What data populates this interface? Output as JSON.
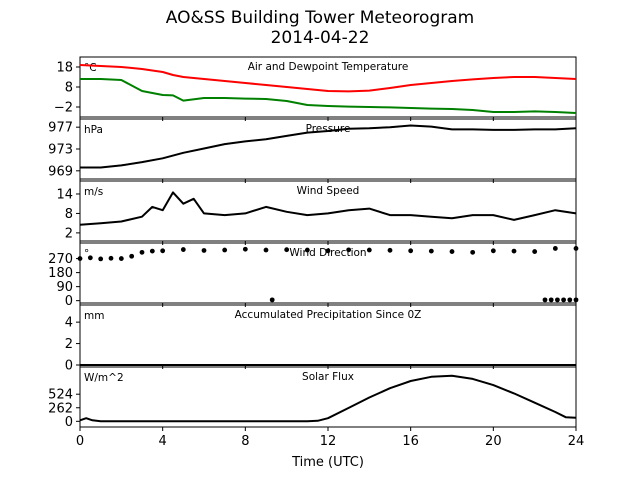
{
  "title": "AO&SS Building Tower Meteorogram",
  "subtitle": "2014-04-22",
  "chart_data": [
    {
      "type": "line",
      "panel": "temperature",
      "title": "Air and Dewpoint Temperature",
      "unit": "°C",
      "yticks": [
        18,
        8,
        -2
      ],
      "ytick_labels": [
        "18",
        "8",
        "−2"
      ],
      "ylim": [
        -7,
        23
      ],
      "xlim": [
        0,
        24
      ],
      "x": [
        0,
        1,
        2,
        3,
        4,
        4.5,
        5,
        6,
        7,
        8,
        9,
        10,
        11,
        12,
        13,
        14,
        15,
        16,
        17,
        18,
        19,
        20,
        21,
        22,
        23,
        24
      ],
      "series": [
        {
          "color": "#ff0000",
          "values": [
            19,
            18.5,
            18,
            17,
            15.5,
            14,
            13,
            12,
            11,
            10,
            9,
            8,
            7,
            6,
            5.8,
            6.2,
            7.5,
            9,
            10,
            11,
            11.8,
            12.5,
            13,
            13,
            12.5,
            12
          ]
        },
        {
          "color": "#008000",
          "values": [
            12,
            12,
            11.5,
            6,
            4,
            3.8,
            1.2,
            2.5,
            2.5,
            2.2,
            2,
            1,
            -1,
            -1.5,
            -1.8,
            -2,
            -2.2,
            -2.5,
            -2.8,
            -3,
            -3.5,
            -4.5,
            -4.5,
            -4.2,
            -4.5,
            -5
          ]
        }
      ]
    },
    {
      "type": "line",
      "panel": "pressure",
      "title": "Pressure",
      "unit": "hPa",
      "yticks": [
        977,
        973,
        969
      ],
      "ylim": [
        967.5,
        978.5
      ],
      "xlim": [
        0,
        24
      ],
      "x": [
        0,
        1,
        2,
        3,
        4,
        5,
        6,
        7,
        8,
        9,
        10,
        11,
        12,
        13,
        14,
        15,
        16,
        17,
        18,
        19,
        20,
        21,
        22,
        23,
        24
      ],
      "series": [
        {
          "color": "#000000",
          "values": [
            969.6,
            969.6,
            970,
            970.6,
            971.3,
            972.3,
            973.1,
            973.9,
            974.4,
            974.8,
            975.4,
            976,
            976.3,
            976.7,
            976.8,
            977,
            977.3,
            977.1,
            976.6,
            976.6,
            976.5,
            976.5,
            976.6,
            976.6,
            976.8
          ]
        }
      ]
    },
    {
      "type": "line",
      "panel": "wind_speed",
      "title": "Wind Speed",
      "unit": "m/s",
      "yticks": [
        14,
        8,
        2
      ],
      "ylim": [
        -0.5,
        18
      ],
      "xlim": [
        0,
        24
      ],
      "x": [
        0,
        1,
        2,
        3,
        3.5,
        4,
        4.5,
        5,
        5.5,
        6,
        7,
        8,
        9,
        10,
        11,
        12,
        13,
        14,
        15,
        16,
        17,
        18,
        19,
        20,
        21,
        22,
        23,
        24
      ],
      "series": [
        {
          "color": "#000000",
          "values": [
            4.5,
            5,
            5.5,
            7,
            10,
            9,
            14.5,
            11,
            12.5,
            8,
            7.5,
            8,
            10,
            8.5,
            7.5,
            8,
            9,
            9.5,
            7.5,
            7.5,
            7,
            6.5,
            7.5,
            7.5,
            6,
            7.5,
            9,
            8
          ]
        }
      ]
    },
    {
      "type": "scatter",
      "panel": "wind_direction",
      "title": "Wind Direction",
      "unit": "°",
      "yticks": [
        270,
        180,
        90,
        0
      ],
      "ylim": [
        -15,
        370
      ],
      "xlim": [
        0,
        24
      ],
      "x": [
        0,
        0.5,
        1,
        1.5,
        2,
        2.5,
        3,
        3.5,
        4,
        5,
        6,
        7,
        8,
        9,
        10,
        11,
        12,
        13,
        14,
        15,
        16,
        17,
        18,
        19,
        20,
        21,
        22,
        23,
        24
      ],
      "series": [
        {
          "color": "#000000",
          "values": [
            270,
            275,
            268,
            272,
            270,
            285,
            310,
            318,
            320,
            328,
            322,
            325,
            330,
            325,
            327,
            325,
            320,
            326,
            325,
            323,
            320,
            318,
            315,
            310,
            320,
            318,
            315,
            335,
            335
          ]
        },
        {
          "color": "#000000",
          "x": [
            9.3,
            22.5,
            22.8,
            23.1,
            23.4,
            23.7,
            24
          ],
          "values": [
            5,
            5,
            5,
            5,
            5,
            5,
            5
          ]
        }
      ]
    },
    {
      "type": "line",
      "panel": "precipitation",
      "title": "Accumulated Precipitation Since 0Z",
      "unit": "mm",
      "yticks": [
        4,
        2,
        0
      ],
      "ylim": [
        0,
        5.6
      ],
      "xlim": [
        0,
        24
      ],
      "x": [
        0,
        24
      ],
      "series": [
        {
          "color": "#000000",
          "values": [
            0,
            0
          ]
        }
      ]
    },
    {
      "type": "line",
      "panel": "solar_flux",
      "title": "Solar Flux",
      "unit": "W/m^2",
      "yticks": [
        524,
        262,
        0
      ],
      "ylim": [
        -110,
        1050
      ],
      "xlim": [
        0,
        24
      ],
      "xlabel": "Time (UTC)",
      "xticks": [
        0,
        4,
        8,
        12,
        16,
        20,
        24
      ],
      "x": [
        0,
        0.3,
        0.6,
        1,
        2,
        4,
        6,
        8,
        10,
        11,
        11.5,
        12,
        13,
        14,
        15,
        16,
        17,
        18,
        19,
        20,
        21,
        22,
        23,
        23.5,
        24
      ],
      "series": [
        {
          "color": "#000000",
          "values": [
            20,
            60,
            20,
            0,
            0,
            0,
            0,
            0,
            0,
            0,
            10,
            60,
            260,
            460,
            640,
            780,
            860,
            880,
            820,
            700,
            540,
            360,
            180,
            80,
            70
          ]
        }
      ]
    }
  ]
}
